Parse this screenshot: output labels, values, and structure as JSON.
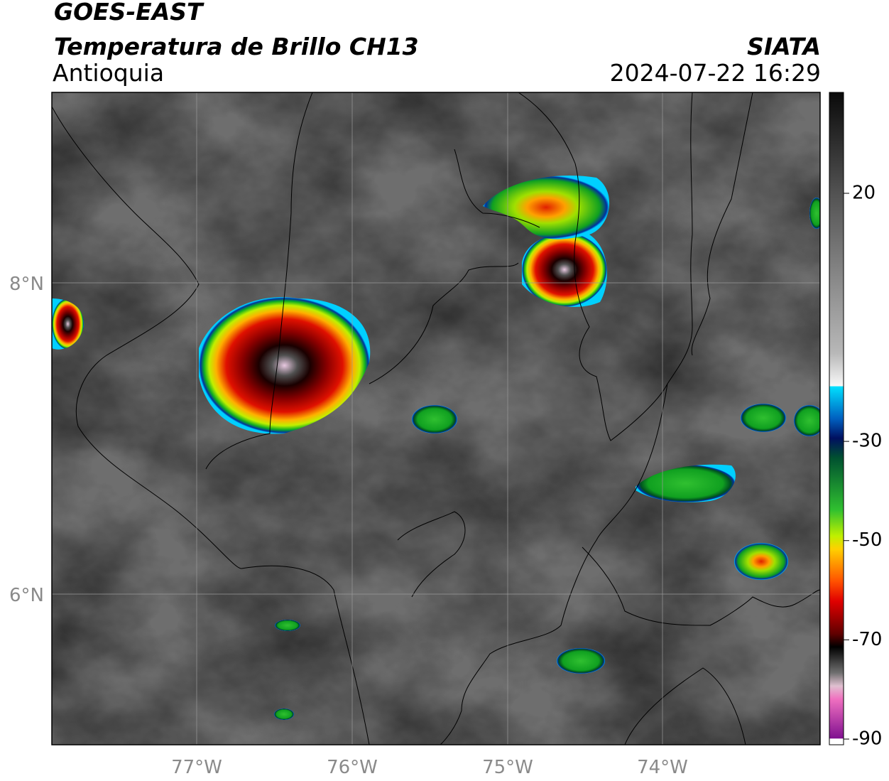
{
  "header": {
    "line1": "GOES-EAST",
    "title": "Temperatura de Brillo CH13",
    "region": "Antioquia",
    "source": "SIATA",
    "datetime": "2024-07-22 16:29"
  },
  "map": {
    "lat_labels": [
      "8°N",
      "6°N"
    ],
    "lon_labels": [
      "77°W",
      "76°W",
      "75°W",
      "74°W"
    ]
  },
  "colorbar": {
    "ticks": [
      20,
      -30,
      -50,
      -70,
      -90
    ]
  }
}
